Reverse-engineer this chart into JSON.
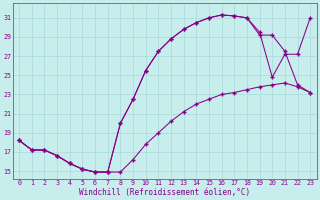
{
  "xlabel": "Windchill (Refroidissement éolien,°C)",
  "bg_color": "#c8eded",
  "grid_color": "#a8d8d8",
  "line_color": "#880088",
  "xlim_min": -0.5,
  "xlim_max": 23.5,
  "ylim_min": 14.2,
  "ylim_max": 32.5,
  "xticks": [
    0,
    1,
    2,
    3,
    4,
    5,
    6,
    7,
    8,
    9,
    10,
    11,
    12,
    13,
    14,
    15,
    16,
    17,
    18,
    19,
    20,
    21,
    22,
    23
  ],
  "yticks": [
    15,
    17,
    19,
    21,
    23,
    25,
    27,
    29,
    31
  ],
  "curve1_x": [
    0,
    1,
    2,
    3,
    4,
    5,
    6,
    7,
    8,
    9,
    10,
    11,
    12,
    13,
    14,
    15,
    16,
    17,
    18,
    19,
    20,
    21,
    22,
    23
  ],
  "curve1_y": [
    18.2,
    17.2,
    17.2,
    16.6,
    15.8,
    15.2,
    14.9,
    14.9,
    14.9,
    16.2,
    17.8,
    19.0,
    20.2,
    21.2,
    22.0,
    22.5,
    23.0,
    23.2,
    23.5,
    23.8,
    24.0,
    24.2,
    23.8,
    23.2
  ],
  "curve2_x": [
    0,
    1,
    2,
    3,
    4,
    5,
    6,
    7,
    8,
    9,
    10,
    11,
    12,
    13,
    14,
    15,
    16,
    17,
    18,
    19,
    20,
    21,
    22,
    23
  ],
  "curve2_y": [
    18.2,
    17.2,
    17.2,
    16.6,
    15.8,
    15.2,
    14.9,
    14.9,
    20.0,
    22.5,
    25.5,
    27.5,
    28.8,
    29.8,
    30.5,
    31.0,
    31.3,
    31.2,
    31.0,
    29.2,
    29.2,
    27.5,
    24.0,
    23.2
  ],
  "curve3_x": [
    0,
    1,
    2,
    3,
    4,
    5,
    6,
    7,
    8,
    9,
    10,
    11,
    12,
    13,
    14,
    15,
    16,
    17,
    18,
    19,
    20,
    21,
    22,
    23
  ],
  "curve3_y": [
    18.2,
    17.2,
    17.2,
    16.6,
    15.8,
    15.2,
    14.9,
    14.9,
    20.0,
    22.5,
    25.5,
    27.5,
    28.8,
    29.8,
    30.5,
    31.0,
    31.3,
    31.2,
    31.0,
    29.5,
    24.8,
    27.2,
    27.2,
    31.0
  ]
}
